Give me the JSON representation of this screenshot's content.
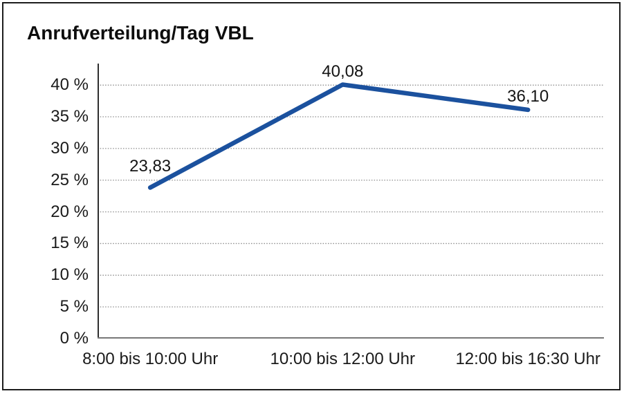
{
  "title": "Anrufverteilung/Tag VBL",
  "chart_data": {
    "type": "line",
    "title": "Anrufverteilung/Tag VBL",
    "categories": [
      "8:00 bis 10:00 Uhr",
      "10:00 bis 12:00 Uhr",
      "12:00 bis 16:30 Uhr"
    ],
    "values": [
      23.83,
      40.08,
      36.1
    ],
    "value_labels": [
      "23,83",
      "40,08",
      "36,10"
    ],
    "xlabel": "",
    "ylabel": "",
    "ylim": [
      0,
      43.4
    ],
    "yticks": [
      0,
      5,
      10,
      15,
      20,
      25,
      30,
      35,
      40
    ],
    "ytick_labels": [
      "0 %",
      "5 %",
      "10 %",
      "15 %",
      "20 %",
      "25 %",
      "30 %",
      "35 %",
      "40 %"
    ],
    "grid": "horizontal-dotted",
    "legend": "none",
    "unit": "%"
  },
  "colors": {
    "line": "#1b519e",
    "gridline": "#8c8c8c",
    "y_axis": "#2e2e2e",
    "x_axis": "#787878",
    "frame_border": "#1c1c1c",
    "text": "#1a1a1a",
    "background": "#ffffff"
  }
}
